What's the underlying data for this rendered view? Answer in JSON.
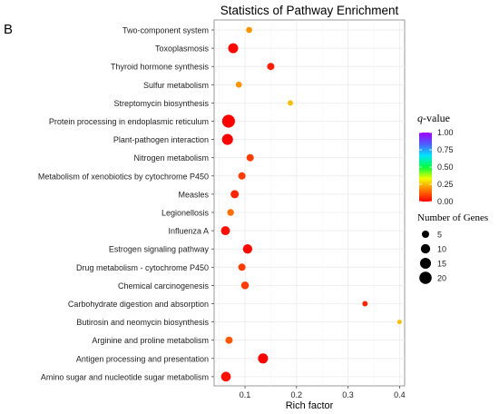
{
  "panel_label": "B",
  "chart_data": {
    "type": "scatter",
    "title": "Statistics of Pathway Enrichment",
    "xlabel": "Rich factor",
    "ylabel": "",
    "xlim": [
      0.04,
      0.41
    ],
    "x_ticks": [
      0.1,
      0.2,
      0.3,
      0.4
    ],
    "x_tick_labels": [
      "0.1",
      "0.2",
      "0.3",
      "0.4"
    ],
    "grid": true,
    "categories": [
      "Two-component system",
      "Toxoplasmosis",
      "Thyroid hormone synthesis",
      "Sulfur metabolism",
      "Streptomycin biosynthesis",
      "Protein processing in endoplasmic reticulum",
      "Plant-pathogen interaction",
      "Nitrogen metabolism",
      "Metabolism of xenobiotics by cytochrome P450",
      "Measles",
      "Legionellosis",
      "Influenza A",
      "Estrogen signaling pathway",
      "Drug metabolism - cytochrome P450",
      "Chemical carcinogenesis",
      "Carbohydrate digestion and absorption",
      "Butirosin and neomycin biosynthesis",
      "Arginine and proline metabolism",
      "Antigen processing and presentation",
      "Amino sugar and nucleotide sugar metabolism"
    ],
    "points": [
      {
        "pathway": "Two-component system",
        "rich_factor": 0.108,
        "q_value": 0.2,
        "genes": 3
      },
      {
        "pathway": "Toxoplasmosis",
        "rich_factor": 0.077,
        "q_value": 0.01,
        "genes": 12
      },
      {
        "pathway": "Thyroid hormone synthesis",
        "rich_factor": 0.15,
        "q_value": 0.04,
        "genes": 5
      },
      {
        "pathway": "Sulfur metabolism",
        "rich_factor": 0.088,
        "q_value": 0.2,
        "genes": 3
      },
      {
        "pathway": "Streptomycin biosynthesis",
        "rich_factor": 0.188,
        "q_value": 0.25,
        "genes": 2
      },
      {
        "pathway": "Protein processing in endoplasmic reticulum",
        "rich_factor": 0.068,
        "q_value": 0.0,
        "genes": 22
      },
      {
        "pathway": "Plant-pathogen interaction",
        "rich_factor": 0.066,
        "q_value": 0.0,
        "genes": 15
      },
      {
        "pathway": "Nitrogen metabolism",
        "rich_factor": 0.11,
        "q_value": 0.08,
        "genes": 5
      },
      {
        "pathway": "Metabolism of xenobiotics by cytochrome P450",
        "rich_factor": 0.094,
        "q_value": 0.08,
        "genes": 5
      },
      {
        "pathway": "Measles",
        "rich_factor": 0.08,
        "q_value": 0.05,
        "genes": 7
      },
      {
        "pathway": "Legionellosis",
        "rich_factor": 0.072,
        "q_value": 0.15,
        "genes": 4
      },
      {
        "pathway": "Influenza A",
        "rich_factor": 0.062,
        "q_value": 0.02,
        "genes": 9
      },
      {
        "pathway": "Estrogen signaling pathway",
        "rich_factor": 0.105,
        "q_value": 0.01,
        "genes": 10
      },
      {
        "pathway": "Drug metabolism - cytochrome P450",
        "rich_factor": 0.094,
        "q_value": 0.08,
        "genes": 5
      },
      {
        "pathway": "Chemical carcinogenesis",
        "rich_factor": 0.1,
        "q_value": 0.08,
        "genes": 6
      },
      {
        "pathway": "Carbohydrate digestion and absorption",
        "rich_factor": 0.333,
        "q_value": 0.05,
        "genes": 2
      },
      {
        "pathway": "Butirosin and neomycin biosynthesis",
        "rich_factor": 0.4,
        "q_value": 0.25,
        "genes": 1
      },
      {
        "pathway": "Arginine and proline metabolism",
        "rich_factor": 0.069,
        "q_value": 0.12,
        "genes": 5
      },
      {
        "pathway": "Antigen processing and presentation",
        "rich_factor": 0.135,
        "q_value": 0.0,
        "genes": 12
      },
      {
        "pathway": "Amino sugar and nucleotide sugar metabolism",
        "rich_factor": 0.063,
        "q_value": 0.02,
        "genes": 11
      }
    ],
    "color_legend": {
      "title_italic": "q",
      "title_rest": "-value",
      "tick_values": [
        0.0,
        0.25,
        0.5,
        0.75,
        1.0
      ],
      "tick_labels": [
        "0.00",
        "0.25",
        "0.50",
        "0.75",
        "1.00"
      ],
      "gradient_colors": [
        "#ff0000",
        "#ff7a00",
        "#f0ff00",
        "#00ff3c",
        "#00e6ff",
        "#4d5cff",
        "#a100ff"
      ]
    },
    "size_legend": {
      "title": "Number of Genes",
      "values": [
        5,
        10,
        15,
        20
      ],
      "labels": [
        "5",
        "10",
        "15",
        "20"
      ]
    }
  }
}
